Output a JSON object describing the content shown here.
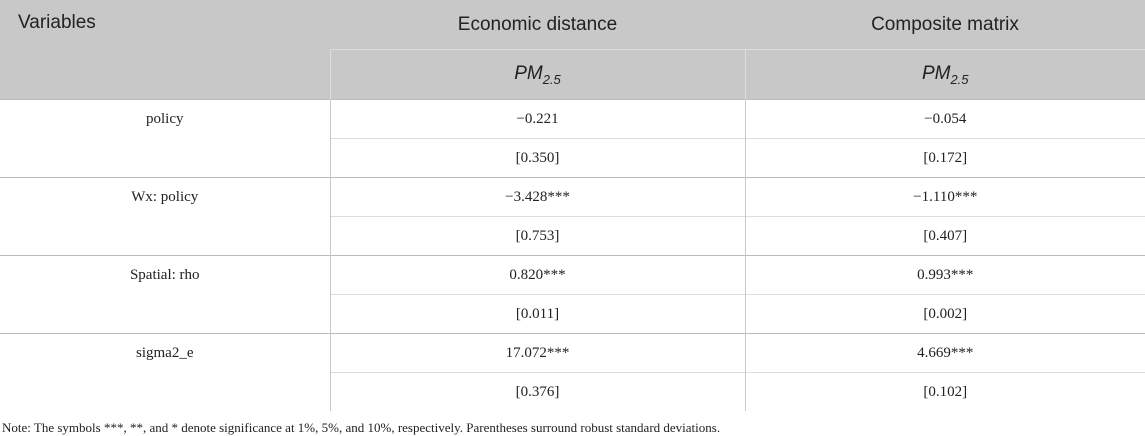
{
  "header": {
    "columns": [
      "Variables",
      "Economic distance",
      "Composite matrix"
    ],
    "subheader": [
      {
        "main": "PM",
        "sub": "2.5"
      },
      {
        "main": "PM",
        "sub": "2.5"
      }
    ]
  },
  "rows": [
    {
      "variable": "policy",
      "coef": [
        "−0.221",
        "−0.054"
      ],
      "se": [
        "[0.350]",
        "[0.172]"
      ]
    },
    {
      "variable": "Wx: policy",
      "coef": [
        "−3.428***",
        "−1.110***"
      ],
      "se": [
        "[0.753]",
        "[0.407]"
      ]
    },
    {
      "variable": "Spatial: rho",
      "coef": [
        "0.820***",
        "0.993***"
      ],
      "se": [
        "[0.011]",
        "[0.002]"
      ]
    },
    {
      "variable": "sigma2_e",
      "coef": [
        "17.072***",
        "4.669***"
      ],
      "se": [
        "[0.376]",
        "[0.102]"
      ]
    }
  ],
  "note": "Note: The symbols ***, **, and * denote significance at 1%, 5%, and 10%, respectively. Parentheses surround robust standard deviations."
}
